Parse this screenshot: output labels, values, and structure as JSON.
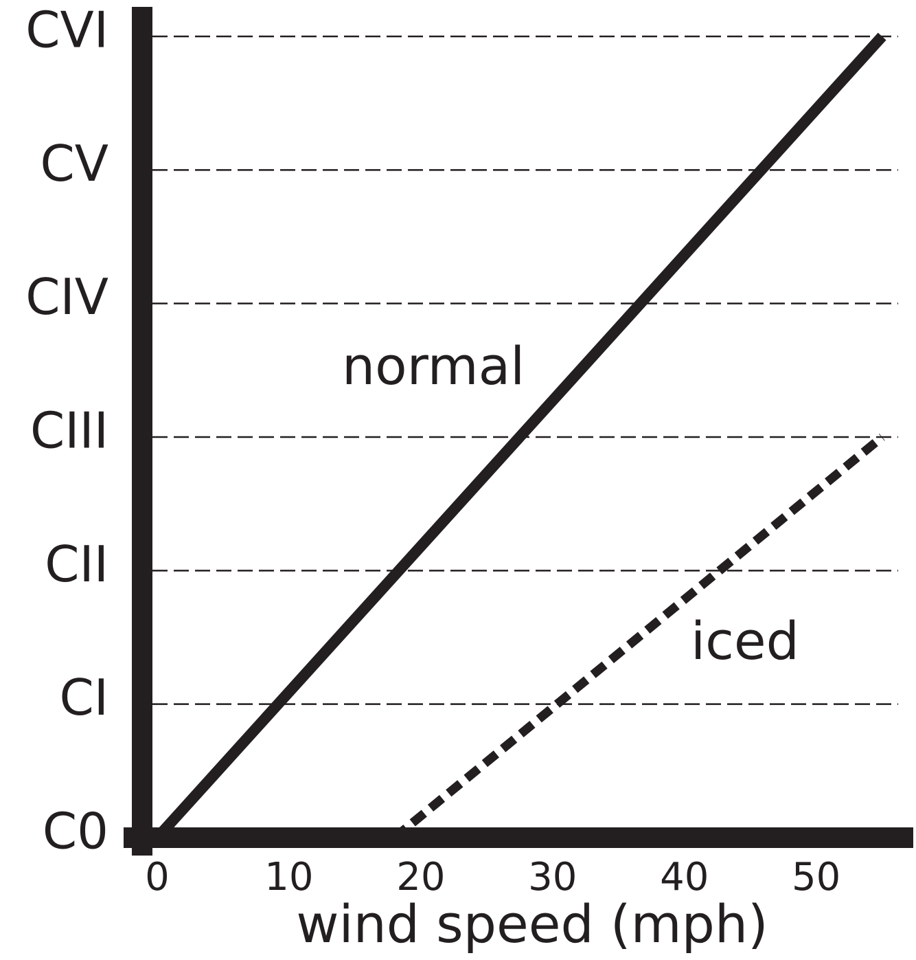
{
  "chart_data": {
    "type": "line",
    "xlabel": "wind speed (mph)",
    "xlim": [
      0,
      57
    ],
    "xticks": [
      0,
      10,
      20,
      30,
      40,
      50
    ],
    "ylim": [
      0,
      6
    ],
    "yticks": [
      {
        "value": 0,
        "label": "C0"
      },
      {
        "value": 1,
        "label": "CI"
      },
      {
        "value": 2,
        "label": "CII"
      },
      {
        "value": 3,
        "label": "CIII"
      },
      {
        "value": 4,
        "label": "CIV"
      },
      {
        "value": 5,
        "label": "CV"
      },
      {
        "value": 6,
        "label": "CVI"
      }
    ],
    "grid": true,
    "annotations": [
      "normal",
      "iced"
    ],
    "series": [
      {
        "name": "normal",
        "color": "#231f20",
        "style": "solid",
        "x": [
          0,
          55
        ],
        "values": [
          0,
          6
        ]
      },
      {
        "name": "iced",
        "color": "#231f20",
        "style": "dashed",
        "x": [
          18,
          55
        ],
        "values": [
          0,
          3
        ]
      }
    ]
  }
}
